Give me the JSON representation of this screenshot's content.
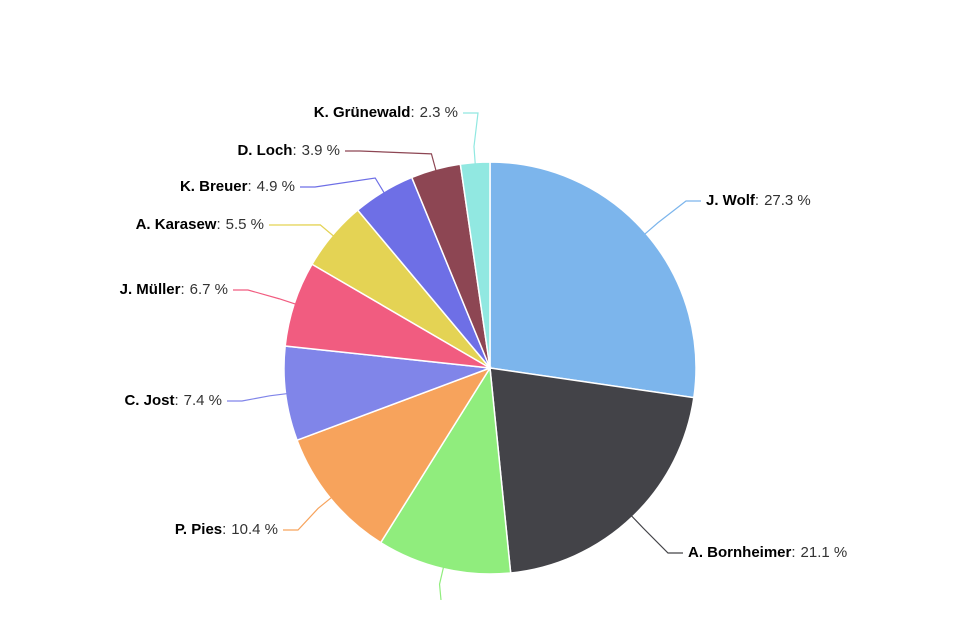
{
  "chart_data": {
    "type": "pie",
    "categories": [
      "J. Wolf",
      "A. Bornheimer",
      null,
      "P. Pies",
      "C. Jost",
      "J. Müller",
      "A. Karasew",
      "K. Breuer",
      "D. Loch",
      "K. Grünewald"
    ],
    "values": [
      27.3,
      21.1,
      10.5,
      10.4,
      7.4,
      6.7,
      5.5,
      4.9,
      3.9,
      2.3
    ],
    "value_labels": [
      "27.3 %",
      "21.1 %",
      null,
      "10.4 %",
      "7.4 %",
      "6.7 %",
      "5.5 %",
      "4.9 %",
      "3.9 %",
      "2.3 %"
    ],
    "label_separator": ":",
    "colors": [
      "#7cb5ec",
      "#434348",
      "#90ed7d",
      "#f7a35c",
      "#8085e9",
      "#f15c80",
      "#e4d354",
      "#6e6fe6",
      "#8d4653",
      "#91e8e1"
    ]
  }
}
